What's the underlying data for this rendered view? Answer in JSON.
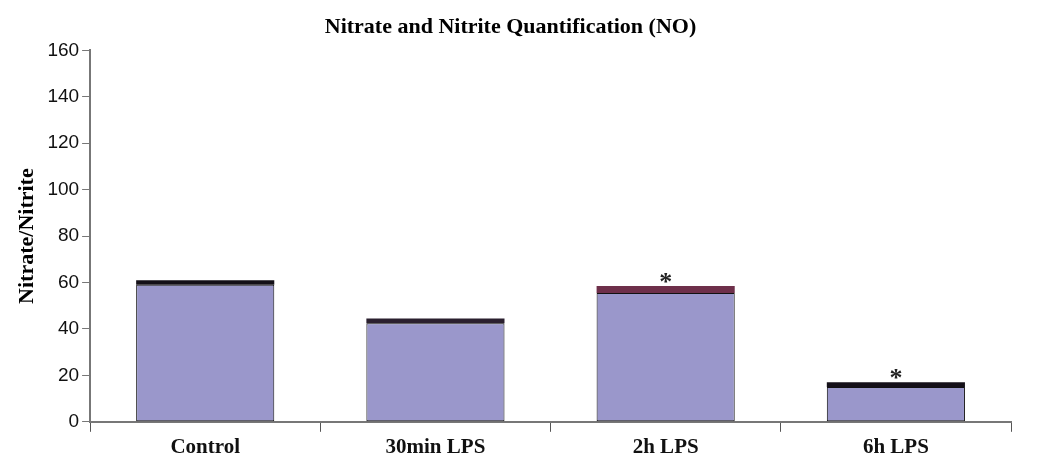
{
  "chart_data": {
    "type": "bar",
    "title": "Nitrate and Nitrite Quantification (NO)",
    "ylabel": "Nitrate/Nitrite",
    "categories": [
      "Control",
      "30min LPS",
      "2h LPS",
      "6h LPS"
    ],
    "stacked": true,
    "series": [
      {
        "color": "#9a97cb",
        "values": [
          59,
          42.5,
          55.5,
          15
        ]
      },
      {
        "colors": [
          "#141018",
          "#2a1f2e",
          "#6e2f4a",
          "#141018"
        ],
        "values": [
          2,
          2,
          3,
          2
        ]
      }
    ],
    "ylim": [
      0,
      160
    ],
    "yticks": [
      0,
      20,
      40,
      60,
      80,
      100,
      120,
      140,
      160
    ],
    "grid": false,
    "legend": false,
    "annotations": [
      {
        "text": "*",
        "x": "2h LPS",
        "y": 58.5
      },
      {
        "text": "*",
        "x": "6h LPS",
        "y": 17
      }
    ]
  }
}
